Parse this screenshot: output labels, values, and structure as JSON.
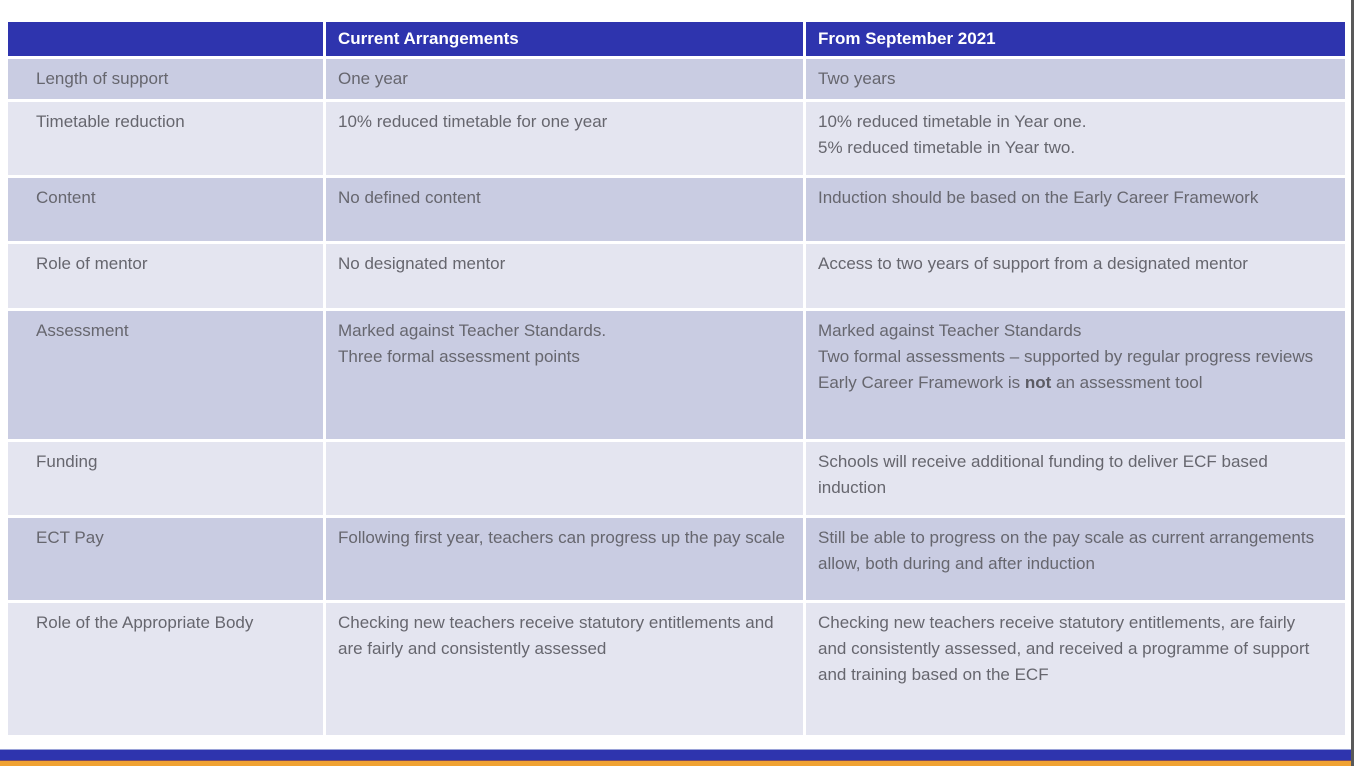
{
  "colors": {
    "header_bg": "#2e34ae",
    "header_text": "#ffffff",
    "row_dark": "#c9cce2",
    "row_light": "#e4e5f0",
    "body_text": "#66666e",
    "bottom_blue": "#2e34ae",
    "bottom_orange": "#f0a232",
    "edge_line": "#5a5a5a"
  },
  "table": {
    "columns": [
      "",
      "Current Arrangements",
      "From September 2021"
    ],
    "rows": [
      {
        "label": "Length of support",
        "current": [
          [
            "One year"
          ]
        ],
        "future": [
          [
            "Two years"
          ]
        ]
      },
      {
        "label": "Timetable reduction",
        "current": [
          [
            "10% reduced timetable for one year"
          ]
        ],
        "future": [
          [
            "10% reduced timetable in Year one."
          ],
          [
            "5% reduced timetable in Year two."
          ]
        ]
      },
      {
        "label": "Content",
        "current": [
          [
            "No defined content"
          ]
        ],
        "future": [
          [
            "Induction should be based on the Early Career Framework"
          ]
        ]
      },
      {
        "label": "Role of mentor",
        "current": [
          [
            "No designated mentor"
          ]
        ],
        "future": [
          [
            "Access to two years of support from a designated mentor"
          ]
        ]
      },
      {
        "label": "Assessment",
        "current": [
          [
            "Marked against Teacher Standards."
          ],
          [
            "Three formal assessment points"
          ]
        ],
        "future": [
          [
            "Marked against Teacher Standards"
          ],
          [
            "Two formal assessments – supported by regular progress reviews"
          ],
          [
            "Early Career Framework is ",
            {
              "b": "not"
            },
            " an assessment tool"
          ]
        ]
      },
      {
        "label": "Funding",
        "current": [],
        "future": [
          [
            "Schools will receive additional funding to deliver ECF based induction"
          ]
        ]
      },
      {
        "label": "ECT Pay",
        "current": [
          [
            "Following first year, teachers can progress up the pay scale"
          ]
        ],
        "future": [
          [
            "Still be able to progress on the pay scale as current arrangements allow, both during and after induction"
          ]
        ]
      },
      {
        "label": "Role of the Appropriate Body",
        "current": [
          [
            "Checking new teachers receive statutory entitlements and are fairly and consistently assessed"
          ]
        ],
        "future": [
          [
            "Checking new teachers receive statutory entitlements, are fairly and consistently assessed, and received a programme of support and training based on the ECF"
          ]
        ]
      }
    ]
  }
}
